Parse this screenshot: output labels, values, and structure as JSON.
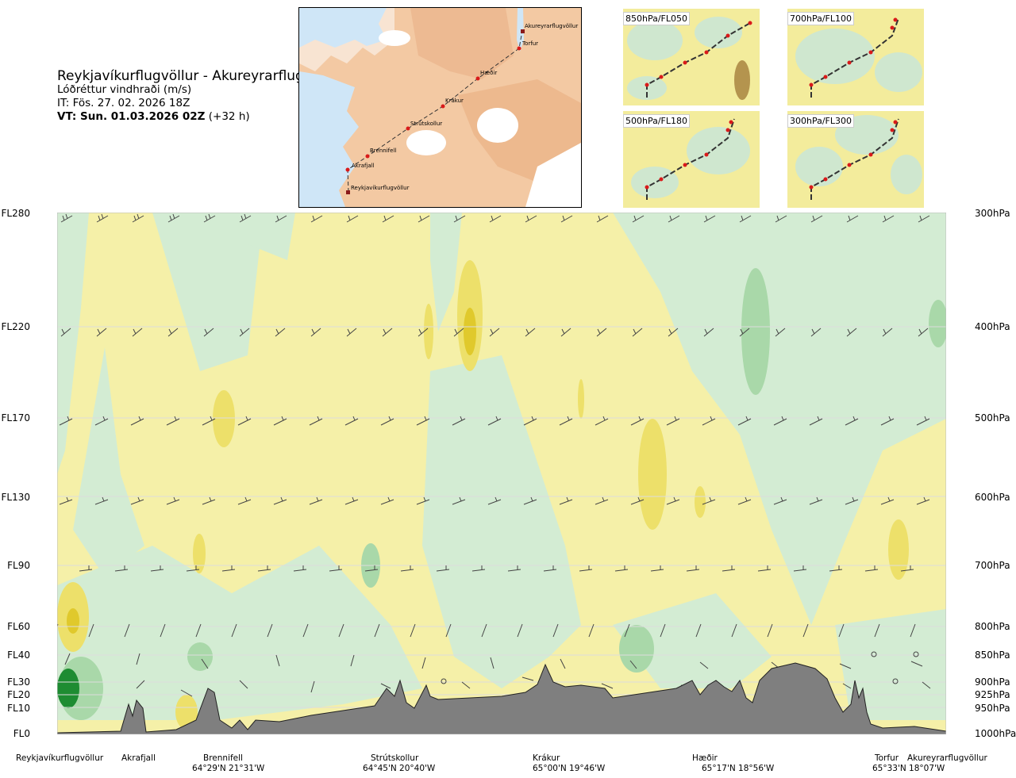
{
  "header": {
    "route": "Reykjavíkurflugvöllur - Akureyrarflugvöllur",
    "variable": "Lóðréttur vindhraði (m/s)",
    "issue_time": "IT: Fös. 27. 02. 2026 18Z",
    "valid_label": "VT: Sun. 01.03.2026 02Z",
    "lead_time": "(+32 h)"
  },
  "route_map": {
    "waypoints": [
      "Akureyrarflugvöllur",
      "Torfur",
      "Hæðir",
      "Krákur",
      "Strútskollur",
      "Brennifell",
      "Akrafjall",
      "Reykjavíkurflugvöllur"
    ]
  },
  "level_maps": [
    {
      "label": "850hPa/FL050"
    },
    {
      "label": "700hPa/FL100"
    },
    {
      "label": "500hPa/FL180"
    },
    {
      "label": "300hPa/FL300"
    }
  ],
  "axes": {
    "left_levels": [
      "FL280",
      "FL220",
      "FL170",
      "FL130",
      "FL90",
      "FL60",
      "FL40",
      "FL30",
      "FL20",
      "FL10",
      "FL0"
    ],
    "right_levels": [
      "300hPa",
      "400hPa",
      "500hPa",
      "600hPa",
      "700hPa",
      "800hPa",
      "850hPa",
      "900hPa",
      "925hPa",
      "950hPa",
      "1000hPa"
    ]
  },
  "locations": [
    {
      "name": "Reykjavíkurflugvöllur",
      "coord": ""
    },
    {
      "name": "Akrafjall",
      "coord": ""
    },
    {
      "name": "Brennifell",
      "coord": "64°29'N 21°31'W"
    },
    {
      "name": "Strútskollur",
      "coord": "64°45'N 20°40'W"
    },
    {
      "name": "Krákur",
      "coord": "65°00'N 19°46'W"
    },
    {
      "name": "Hæðir",
      "coord": "65°17'N 18°56'W"
    },
    {
      "name": "Torfur",
      "coord": "65°33'N 18°07'W"
    },
    {
      "name": "Akureyrarflugvöllur",
      "coord": ""
    }
  ],
  "colors": {
    "updraft_light": "#d3ecd3",
    "updraft_mid": "#a9d8a9",
    "updraft_strong": "#1e8c32",
    "downdraft_light": "#f5f0a8",
    "downdraft_mid": "#ede06a",
    "downdraft_strong": "#e0c92c",
    "near_zero": "#f3fbe8",
    "terrain": "#7f7f7f",
    "route_line": "#333333",
    "waypoint": "#d91a1a"
  }
}
